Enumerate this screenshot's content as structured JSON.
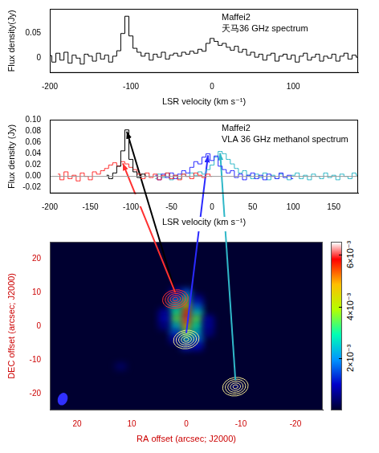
{
  "chart_data": [
    {
      "type": "line",
      "title": "Maffei2",
      "subtitle": "天马36 GHz spectrum",
      "xlabel": "LSR velocity (km s⁻¹)",
      "ylabel": "Flux density(Jy)",
      "xlim": [
        -200,
        180
      ],
      "xticks": [
        -200,
        -100,
        0,
        100
      ],
      "ylim": [
        -0.03,
        0.1
      ],
      "yticks": [
        0,
        0.05
      ],
      "grid": false,
      "series": [
        {
          "color": "#000000",
          "line_style": "steps",
          "x": [
            -200,
            -195,
            -190,
            -185,
            -180,
            -175,
            -170,
            -165,
            -160,
            -155,
            -150,
            -145,
            -140,
            -135,
            -130,
            -125,
            -120,
            -115,
            -110,
            -105,
            -100,
            -95,
            -90,
            -85,
            -80,
            -75,
            -70,
            -65,
            -60,
            -55,
            -50,
            -45,
            -40,
            -35,
            -30,
            -25,
            -20,
            -15,
            -10,
            -5,
            0,
            5,
            10,
            15,
            20,
            25,
            30,
            35,
            40,
            45,
            50,
            55,
            60,
            65,
            70,
            75,
            80,
            85,
            90,
            95,
            100,
            105,
            110,
            115,
            120,
            125,
            130,
            135,
            140,
            145,
            150,
            155,
            160,
            165,
            170,
            175,
            180
          ],
          "values": [
            0.005,
            -0.008,
            0.01,
            -0.004,
            0.012,
            -0.01,
            0.006,
            0.0,
            -0.012,
            0.008,
            0.004,
            -0.006,
            0.01,
            -0.002,
            0.006,
            -0.008,
            0.004,
            0.015,
            0.05,
            0.085,
            0.045,
            0.02,
            0.012,
            0.004,
            0.01,
            -0.004,
            0.008,
            0.002,
            0.012,
            -0.002,
            0.006,
            0.01,
            0.004,
            0.012,
            0.008,
            0.014,
            0.01,
            0.018,
            0.014,
            0.03,
            0.04,
            0.034,
            0.026,
            0.03,
            0.022,
            0.016,
            0.024,
            0.012,
            0.018,
            0.006,
            0.012,
            0.002,
            0.008,
            -0.004,
            0.006,
            0.01,
            -0.006,
            0.004,
            0.008,
            -0.002,
            0.006,
            -0.008,
            0.004,
            0.01,
            -0.004,
            0.002,
            0.008,
            -0.006,
            0.004,
            0.0,
            0.008,
            -0.006,
            0.004,
            0.01,
            -0.002,
            0.006,
            0.002
          ]
        }
      ]
    },
    {
      "type": "line",
      "title": "Maffei2",
      "subtitle": "VLA 36 GHz methanol spectrum",
      "xlabel": "LSR velocity (km s⁻¹)",
      "ylabel": "Flux density (Jy)",
      "xlim": [
        -200,
        180
      ],
      "xticks": [
        -200,
        -150,
        -100,
        -50,
        0,
        50,
        100,
        150
      ],
      "ylim": [
        -0.03,
        0.1
      ],
      "yticks": [
        {
          "value": -0.02,
          "label": "-0.02"
        },
        {
          "value": 0,
          "label": "0.00"
        },
        {
          "value": 0.02,
          "label": "0.02"
        },
        {
          "value": 0.04,
          "label": "0.04"
        },
        {
          "value": 0.06,
          "label": "0.06"
        },
        {
          "value": 0.08,
          "label": "0.08"
        },
        {
          "value": 0.1,
          "label": "0.10"
        }
      ],
      "grid": false,
      "series": [
        {
          "color": "#000000",
          "line_style": "steps",
          "x": [
            -130,
            -125,
            -120,
            -115,
            -110,
            -105,
            -100,
            -95,
            -90,
            -85,
            -80
          ],
          "values": [
            0.002,
            -0.004,
            0.006,
            0.018,
            0.045,
            0.082,
            0.03,
            0.008,
            -0.002,
            0.004,
            0.0
          ]
        },
        {
          "color": "#ff3030",
          "line_style": "steps",
          "x": [
            -190,
            -185,
            -180,
            -175,
            -170,
            -165,
            -160,
            -155,
            -150,
            -145,
            -140,
            -135,
            -130,
            -125,
            -120,
            -115,
            -110,
            -105,
            -100,
            -95,
            -90,
            -85,
            -80,
            -75,
            -70,
            -65,
            -60,
            -55,
            -50,
            -45,
            -40,
            -35,
            -30,
            -25,
            -20,
            -15,
            -10,
            -5,
            0
          ],
          "values": [
            0.004,
            -0.006,
            0.008,
            -0.004,
            0.002,
            -0.008,
            0.006,
            0.0,
            -0.006,
            0.008,
            0.004,
            0.01,
            0.014,
            0.02,
            0.024,
            0.018,
            0.026,
            0.022,
            0.016,
            0.012,
            0.004,
            -0.004,
            0.006,
            -0.002,
            0.004,
            -0.006,
            0.002,
            0.006,
            -0.004,
            0.002,
            -0.006,
            0.004,
            0.0,
            -0.004,
            0.006,
            0.002,
            -0.002,
            0.004,
            0.0
          ]
        },
        {
          "color": "#2a2aff",
          "line_style": "steps",
          "x": [
            -70,
            -65,
            -60,
            -55,
            -50,
            -45,
            -40,
            -35,
            -30,
            -25,
            -20,
            -15,
            -10,
            -5,
            0,
            5,
            10,
            15,
            20,
            25,
            30,
            35,
            40,
            45,
            50,
            55,
            60,
            65,
            70,
            75,
            80,
            85,
            90,
            95,
            100
          ],
          "values": [
            0.002,
            -0.006,
            0.004,
            -0.002,
            0.006,
            -0.004,
            0.004,
            0.01,
            0.006,
            0.016,
            0.026,
            0.022,
            0.034,
            0.04,
            0.028,
            0.036,
            0.018,
            0.012,
            0.006,
            0.01,
            -0.002,
            0.004,
            -0.006,
            0.002,
            0.006,
            -0.004,
            0.002,
            -0.006,
            0.004,
            0.0,
            -0.004,
            0.006,
            -0.002,
            0.002,
            -0.004
          ]
        },
        {
          "color": "#30b8c8",
          "line_style": "steps",
          "x": [
            -70,
            -65,
            -60,
            -55,
            -50,
            -45,
            -40,
            -35,
            -30,
            -25,
            -20,
            -15,
            -10,
            -5,
            0,
            5,
            10,
            15,
            20,
            25,
            30,
            35,
            40,
            45,
            50,
            55,
            60,
            65,
            70,
            75,
            80,
            85,
            90,
            95,
            100,
            105,
            110,
            115,
            120,
            125,
            130,
            135,
            140,
            145,
            150,
            155,
            160,
            165,
            170,
            175,
            180
          ],
          "values": [
            -0.004,
            0.004,
            -0.002,
            0.006,
            -0.006,
            0.002,
            -0.004,
            0.004,
            0.0,
            0.006,
            0.002,
            0.008,
            0.004,
            0.012,
            0.02,
            0.034,
            0.044,
            0.04,
            0.03,
            0.022,
            0.014,
            0.006,
            0.01,
            0.002,
            -0.004,
            0.004,
            -0.002,
            0.006,
            -0.006,
            0.002,
            -0.004,
            0.004,
            0.0,
            -0.006,
            0.002,
            0.006,
            -0.004,
            0.002,
            -0.006,
            0.004,
            0.0,
            -0.004,
            0.006,
            -0.002,
            0.002,
            -0.006,
            0.004,
            0.0,
            -0.004,
            0.006,
            0.002
          ]
        }
      ]
    },
    {
      "type": "heatmap",
      "xlabel": "RA offset (arcsec; J2000)",
      "ylabel": "DEC offset (arcsec; J2000)",
      "xlim": [
        25,
        -25
      ],
      "xticks": [
        20,
        10,
        0,
        -10,
        -20
      ],
      "ylim": [
        -25,
        25
      ],
      "yticks": [
        -20,
        -10,
        0,
        10,
        20
      ],
      "grid": false,
      "heatmap": {
        "cell": 2,
        "cells": [
          [
            0,
            10,
            0.0015
          ],
          [
            0,
            8,
            0.003
          ],
          [
            0,
            6,
            0.0045
          ],
          [
            0,
            4,
            0.0055
          ],
          [
            0,
            2,
            0.006
          ],
          [
            0,
            0,
            0.005
          ],
          [
            0,
            -2,
            0.0035
          ],
          [
            0,
            -4,
            0.0025
          ],
          [
            0,
            -6,
            0.0012
          ],
          [
            2,
            10,
            0.0008
          ],
          [
            2,
            8,
            0.0015
          ],
          [
            2,
            6,
            0.0025
          ],
          [
            2,
            4,
            0.003
          ],
          [
            2,
            2,
            0.0035
          ],
          [
            2,
            0,
            0.0025
          ],
          [
            2,
            -2,
            0.0015
          ],
          [
            2,
            -4,
            0.0008
          ],
          [
            -2,
            8,
            0.0008
          ],
          [
            -2,
            6,
            0.0015
          ],
          [
            -2,
            4,
            0.0025
          ],
          [
            -2,
            2,
            0.0035
          ],
          [
            -2,
            0,
            0.003
          ],
          [
            -2,
            -2,
            0.0025
          ],
          [
            -2,
            -4,
            0.0018
          ],
          [
            -2,
            -6,
            0.001
          ],
          [
            4,
            4,
            0.0008
          ],
          [
            4,
            2,
            0.001
          ],
          [
            4,
            0,
            0.0006
          ],
          [
            -4,
            2,
            0.0008
          ],
          [
            -4,
            0,
            0.0008
          ],
          [
            -4,
            -2,
            0.0006
          ],
          [
            -9,
            -18,
            0.0006
          ],
          [
            12,
            -12,
            0.0004
          ]
        ]
      },
      "colorbar": {
        "range": [
          0,
          0.0065
        ],
        "ticks": [
          {
            "value": 0.002,
            "label": "2×10⁻³"
          },
          {
            "value": 0.004,
            "label": "4×10⁻³"
          },
          {
            "value": 0.006,
            "label": "6×10⁻³"
          }
        ]
      },
      "series": [
        {
          "type": "scatter",
          "marker": "contour",
          "color": "#ff3030",
          "x": [
            2
          ],
          "values": [
            8
          ]
        },
        {
          "type": "scatter",
          "marker": "contour",
          "color": "#f0e68c",
          "x": [
            0
          ],
          "values": [
            -4
          ]
        },
        {
          "type": "scatter",
          "marker": "contour",
          "color": "#f0e68c",
          "x": [
            -9
          ],
          "values": [
            -18
          ]
        }
      ]
    }
  ]
}
